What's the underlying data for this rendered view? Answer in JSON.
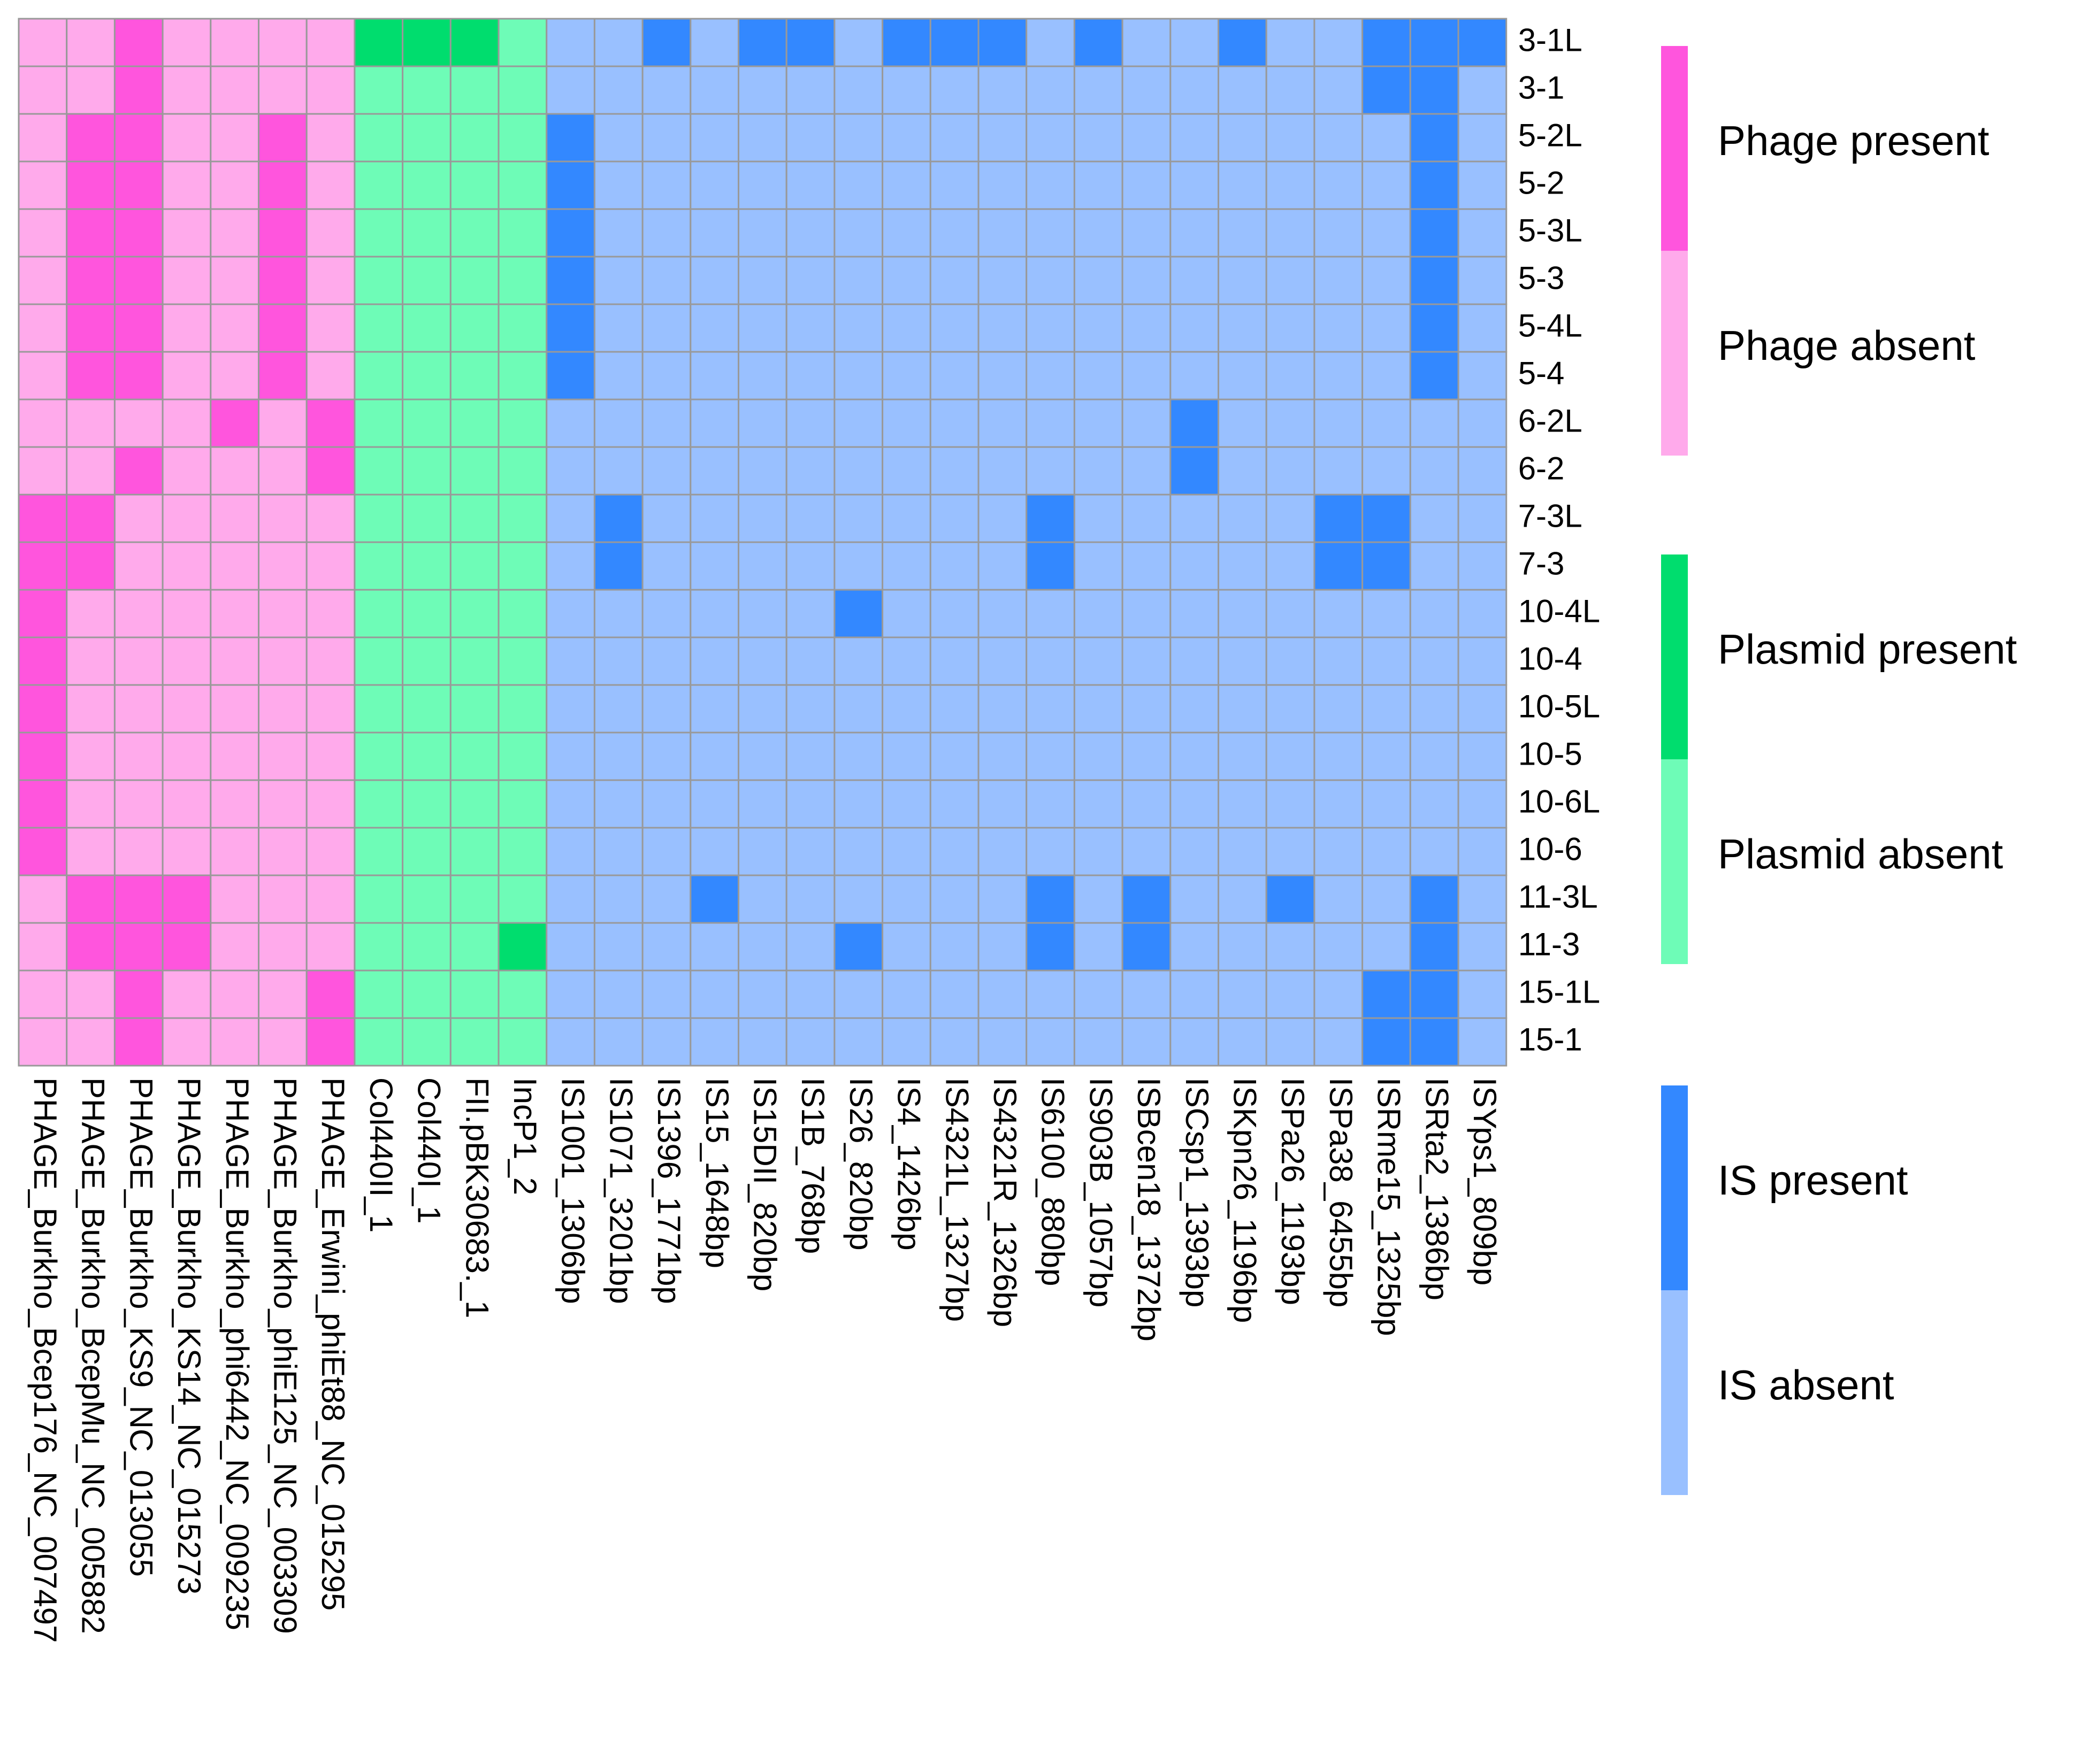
{
  "chart_data": {
    "type": "heatmap",
    "rows": [
      "3-1L",
      "3-1",
      "5-2L",
      "5-2",
      "5-3L",
      "5-3",
      "5-4L",
      "5-4",
      "6-2L",
      "6-2",
      "7-3L",
      "7-3",
      "10-4L",
      "10-4",
      "10-5L",
      "10-5",
      "10-6L",
      "10-6",
      "11-3L",
      "11-3",
      "15-1L",
      "15-1"
    ],
    "groups": [
      {
        "labels": [
          "Phage present",
          "Phage absent"
        ],
        "colors": [
          "#ff55dd",
          "#ffaaeb"
        ],
        "columns": [
          "PHAGE_Burkho_Bcep176_NC_007497",
          "PHAGE_Burkho_BcepMu_NC_005882",
          "PHAGE_Burkho_KS9_NC_013055",
          "PHAGE_Burkho_KS14_NC_015273",
          "PHAGE_Burkho_phi6442_NC_009235",
          "PHAGE_Burkho_phiE125_NC_003309",
          "PHAGE_Erwini_phiEt88_NC_015295"
        ],
        "values": [
          [
            0,
            0,
            1,
            0,
            0,
            0,
            0
          ],
          [
            0,
            0,
            1,
            0,
            0,
            0,
            0
          ],
          [
            0,
            1,
            1,
            0,
            0,
            1,
            0
          ],
          [
            0,
            1,
            1,
            0,
            0,
            1,
            0
          ],
          [
            0,
            1,
            1,
            0,
            0,
            1,
            0
          ],
          [
            0,
            1,
            1,
            0,
            0,
            1,
            0
          ],
          [
            0,
            1,
            1,
            0,
            0,
            1,
            0
          ],
          [
            0,
            1,
            1,
            0,
            0,
            1,
            0
          ],
          [
            0,
            0,
            0,
            0,
            1,
            0,
            1
          ],
          [
            0,
            0,
            1,
            0,
            0,
            0,
            1
          ],
          [
            1,
            1,
            0,
            0,
            0,
            0,
            0
          ],
          [
            1,
            1,
            0,
            0,
            0,
            0,
            0
          ],
          [
            1,
            0,
            0,
            0,
            0,
            0,
            0
          ],
          [
            1,
            0,
            0,
            0,
            0,
            0,
            0
          ],
          [
            1,
            0,
            0,
            0,
            0,
            0,
            0
          ],
          [
            1,
            0,
            0,
            0,
            0,
            0,
            0
          ],
          [
            1,
            0,
            0,
            0,
            0,
            0,
            0
          ],
          [
            1,
            0,
            0,
            0,
            0,
            0,
            0
          ],
          [
            0,
            1,
            1,
            1,
            0,
            0,
            0
          ],
          [
            0,
            1,
            1,
            1,
            0,
            0,
            0
          ],
          [
            0,
            0,
            1,
            0,
            0,
            0,
            1
          ],
          [
            0,
            0,
            1,
            0,
            0,
            0,
            1
          ]
        ]
      },
      {
        "labels": [
          "Plasmid present",
          "Plasmid absent"
        ],
        "colors": [
          "#00dd6e",
          "#6efcb7"
        ],
        "columns": [
          "Col440II_1",
          "Col440I_1",
          "FII.pBK30683._1",
          "IncP1_2"
        ],
        "values": [
          [
            1,
            1,
            1,
            0
          ],
          [
            0,
            0,
            0,
            0
          ],
          [
            0,
            0,
            0,
            0
          ],
          [
            0,
            0,
            0,
            0
          ],
          [
            0,
            0,
            0,
            0
          ],
          [
            0,
            0,
            0,
            0
          ],
          [
            0,
            0,
            0,
            0
          ],
          [
            0,
            0,
            0,
            0
          ],
          [
            0,
            0,
            0,
            0
          ],
          [
            0,
            0,
            0,
            0
          ],
          [
            0,
            0,
            0,
            0
          ],
          [
            0,
            0,
            0,
            0
          ],
          [
            0,
            0,
            0,
            0
          ],
          [
            0,
            0,
            0,
            0
          ],
          [
            0,
            0,
            0,
            0
          ],
          [
            0,
            0,
            0,
            0
          ],
          [
            0,
            0,
            0,
            0
          ],
          [
            0,
            0,
            0,
            0
          ],
          [
            0,
            0,
            0,
            0
          ],
          [
            0,
            0,
            0,
            1
          ],
          [
            0,
            0,
            0,
            0
          ],
          [
            0,
            0,
            0,
            0
          ]
        ]
      },
      {
        "labels": [
          "IS present",
          "IS absent"
        ],
        "colors": [
          "#3388ff",
          "#99c0ff"
        ],
        "columns": [
          "IS1001_1306bp",
          "IS1071_3201bp",
          "IS1396_1771bp",
          "IS15_1648bp",
          "IS15DII_820bp",
          "IS1B_768bp",
          "IS26_820bp",
          "IS4_1426bp",
          "IS4321L_1327bp",
          "IS4321R_1326bp",
          "IS6100_880bp",
          "IS903B_1057bp",
          "ISBcen18_1372bp",
          "ISCsp1_1393bp",
          "ISKpn26_1196bp",
          "ISPa26_1193bp",
          "ISPa38_6455bp",
          "ISRme15_1325bp",
          "ISRta2_1386bp",
          "ISYps1_809bp"
        ],
        "values": [
          [
            0,
            0,
            1,
            0,
            1,
            1,
            0,
            1,
            1,
            1,
            0,
            1,
            0,
            0,
            1,
            0,
            0,
            1,
            1,
            1
          ],
          [
            0,
            0,
            0,
            0,
            0,
            0,
            0,
            0,
            0,
            0,
            0,
            0,
            0,
            0,
            0,
            0,
            0,
            1,
            1,
            0
          ],
          [
            1,
            0,
            0,
            0,
            0,
            0,
            0,
            0,
            0,
            0,
            0,
            0,
            0,
            0,
            0,
            0,
            0,
            0,
            1,
            0
          ],
          [
            1,
            0,
            0,
            0,
            0,
            0,
            0,
            0,
            0,
            0,
            0,
            0,
            0,
            0,
            0,
            0,
            0,
            0,
            1,
            0
          ],
          [
            1,
            0,
            0,
            0,
            0,
            0,
            0,
            0,
            0,
            0,
            0,
            0,
            0,
            0,
            0,
            0,
            0,
            0,
            1,
            0
          ],
          [
            1,
            0,
            0,
            0,
            0,
            0,
            0,
            0,
            0,
            0,
            0,
            0,
            0,
            0,
            0,
            0,
            0,
            0,
            1,
            0
          ],
          [
            1,
            0,
            0,
            0,
            0,
            0,
            0,
            0,
            0,
            0,
            0,
            0,
            0,
            0,
            0,
            0,
            0,
            0,
            1,
            0
          ],
          [
            1,
            0,
            0,
            0,
            0,
            0,
            0,
            0,
            0,
            0,
            0,
            0,
            0,
            0,
            0,
            0,
            0,
            0,
            1,
            0
          ],
          [
            0,
            0,
            0,
            0,
            0,
            0,
            0,
            0,
            0,
            0,
            0,
            0,
            0,
            1,
            0,
            0,
            0,
            0,
            0,
            0
          ],
          [
            0,
            0,
            0,
            0,
            0,
            0,
            0,
            0,
            0,
            0,
            0,
            0,
            0,
            1,
            0,
            0,
            0,
            0,
            0,
            0
          ],
          [
            0,
            1,
            0,
            0,
            0,
            0,
            0,
            0,
            0,
            0,
            1,
            0,
            0,
            0,
            0,
            0,
            1,
            1,
            0,
            0
          ],
          [
            0,
            1,
            0,
            0,
            0,
            0,
            0,
            0,
            0,
            0,
            1,
            0,
            0,
            0,
            0,
            0,
            1,
            1,
            0,
            0
          ],
          [
            0,
            0,
            0,
            0,
            0,
            0,
            1,
            0,
            0,
            0,
            0,
            0,
            0,
            0,
            0,
            0,
            0,
            0,
            0,
            0
          ],
          [
            0,
            0,
            0,
            0,
            0,
            0,
            0,
            0,
            0,
            0,
            0,
            0,
            0,
            0,
            0,
            0,
            0,
            0,
            0,
            0
          ],
          [
            0,
            0,
            0,
            0,
            0,
            0,
            0,
            0,
            0,
            0,
            0,
            0,
            0,
            0,
            0,
            0,
            0,
            0,
            0,
            0
          ],
          [
            0,
            0,
            0,
            0,
            0,
            0,
            0,
            0,
            0,
            0,
            0,
            0,
            0,
            0,
            0,
            0,
            0,
            0,
            0,
            0
          ],
          [
            0,
            0,
            0,
            0,
            0,
            0,
            0,
            0,
            0,
            0,
            0,
            0,
            0,
            0,
            0,
            0,
            0,
            0,
            0,
            0
          ],
          [
            0,
            0,
            0,
            0,
            0,
            0,
            0,
            0,
            0,
            0,
            0,
            0,
            0,
            0,
            0,
            0,
            0,
            0,
            0,
            0
          ],
          [
            0,
            0,
            0,
            1,
            0,
            0,
            0,
            0,
            0,
            0,
            1,
            0,
            1,
            0,
            0,
            1,
            0,
            0,
            1,
            0
          ],
          [
            0,
            0,
            0,
            0,
            0,
            0,
            1,
            0,
            0,
            0,
            1,
            0,
            1,
            0,
            0,
            0,
            0,
            0,
            1,
            0
          ],
          [
            0,
            0,
            0,
            0,
            0,
            0,
            0,
            0,
            0,
            0,
            0,
            0,
            0,
            0,
            0,
            0,
            0,
            1,
            1,
            0
          ],
          [
            0,
            0,
            0,
            0,
            0,
            0,
            0,
            0,
            0,
            0,
            0,
            0,
            0,
            0,
            0,
            0,
            0,
            1,
            1,
            0
          ]
        ]
      }
    ]
  }
}
